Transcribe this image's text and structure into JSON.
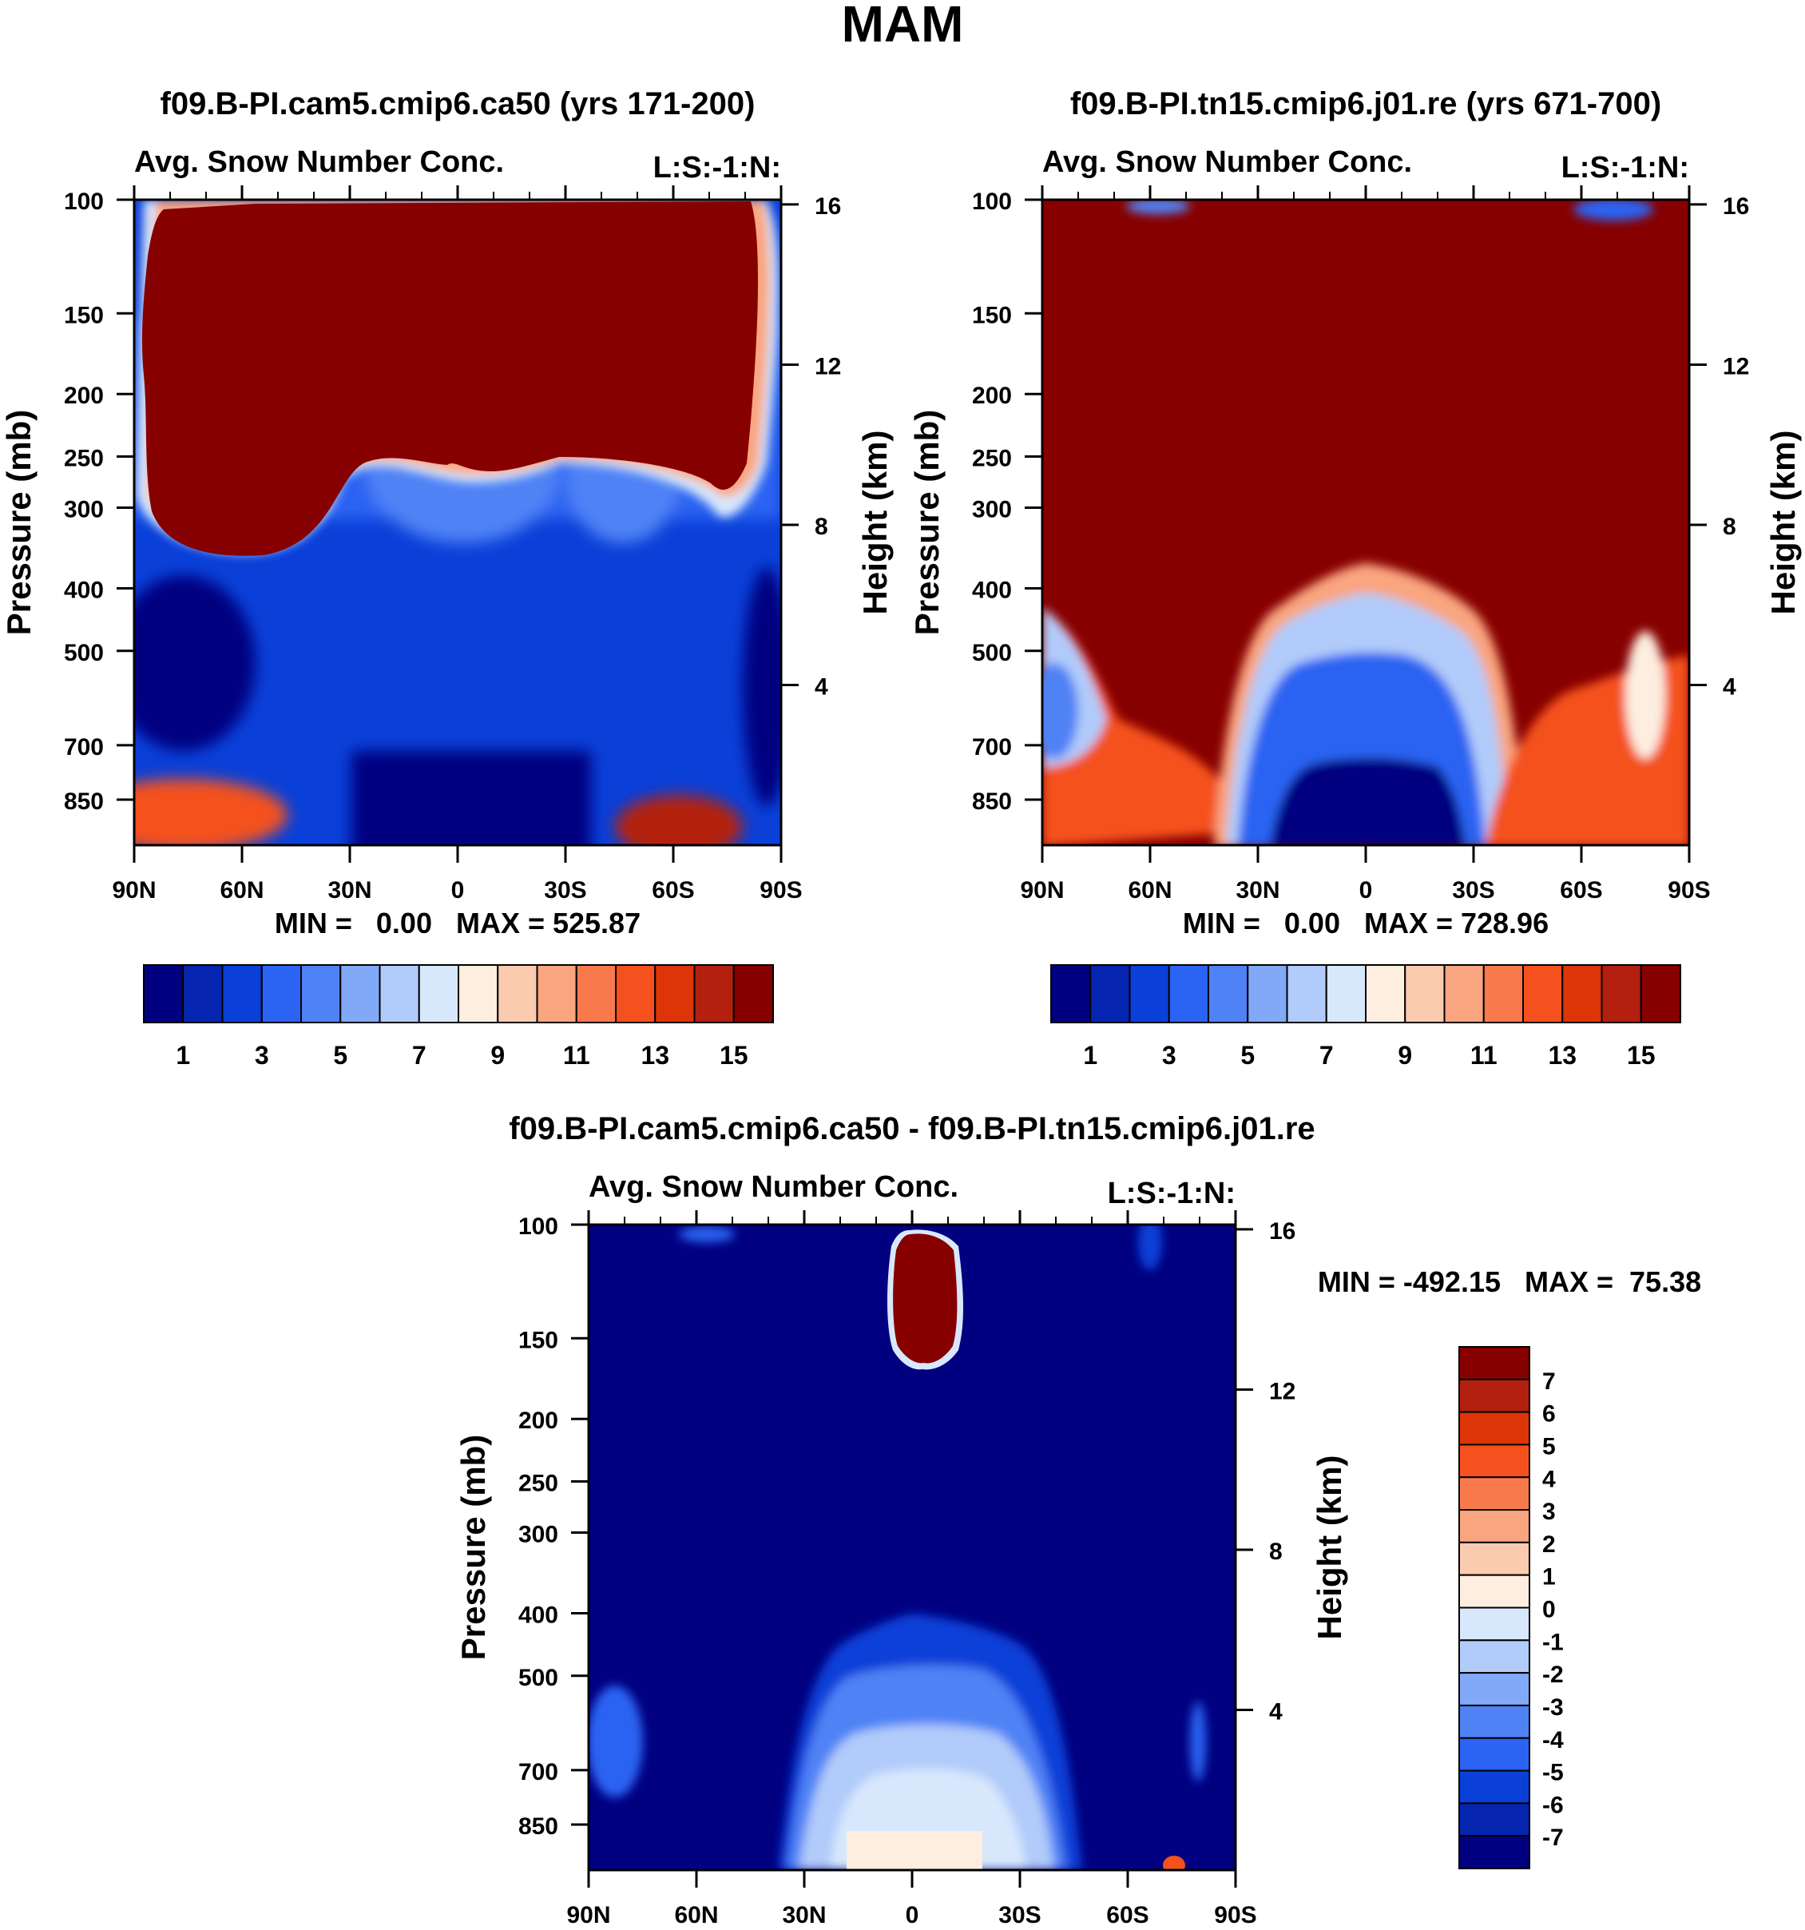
{
  "figure_title": "MAM",
  "palette": {
    "diverging16": [
      "#000080",
      "#0525b0",
      "#0a40d8",
      "#2b63f2",
      "#4f82f5",
      "#82a8f8",
      "#b1cbfa",
      "#d8e8fc",
      "#fdeee0",
      "#fbcbb0",
      "#f9a57f",
      "#f87a4c",
      "#f4511e",
      "#dd3408",
      "#b42010",
      "#870000"
    ],
    "background_low": "#000080",
    "background_high": "#870000"
  },
  "chart_data": [
    {
      "type": "contour",
      "panel": "top-left",
      "title": "f09.B-PI.cam5.cmip6.ca50 (yrs 171-200)",
      "subtitle_left": "Avg. Snow Number Conc.",
      "subtitle_right": "L:S:-1:N:",
      "xlabel": "",
      "ylabel": "Pressure (mb)",
      "y2label": "Height (km)",
      "x_ticks": [
        "90N",
        "60N",
        "30N",
        "0",
        "30S",
        "60S",
        "90S"
      ],
      "y_ticks": [
        100,
        150,
        200,
        250,
        300,
        400,
        500,
        700,
        850
      ],
      "y2_ticks": [
        16,
        12,
        8,
        4
      ],
      "ylim": [
        100,
        1000
      ],
      "stats": "MIN =   0.00   MAX = 525.87",
      "levels": [
        "1",
        "3",
        "5",
        "7",
        "9",
        "11",
        "13",
        "15"
      ],
      "colorbar": "horizontal"
    },
    {
      "type": "contour",
      "panel": "top-right",
      "title": "f09.B-PI.tn15.cmip6.j01.re (yrs 671-700)",
      "subtitle_left": "Avg. Snow Number Conc.",
      "subtitle_right": "L:S:-1:N:",
      "xlabel": "",
      "ylabel": "Pressure (mb)",
      "y2label": "Height (km)",
      "x_ticks": [
        "90N",
        "60N",
        "30N",
        "0",
        "30S",
        "60S",
        "90S"
      ],
      "y_ticks": [
        100,
        150,
        200,
        250,
        300,
        400,
        500,
        700,
        850
      ],
      "y2_ticks": [
        16,
        12,
        8,
        4
      ],
      "ylim": [
        100,
        1000
      ],
      "stats": "MIN =   0.00   MAX = 728.96",
      "levels": [
        "1",
        "3",
        "5",
        "7",
        "9",
        "11",
        "13",
        "15"
      ],
      "colorbar": "horizontal"
    },
    {
      "type": "contour",
      "panel": "bottom",
      "title": "f09.B-PI.cam5.cmip6.ca50 - f09.B-PI.tn15.cmip6.j01.re",
      "subtitle_left": "Avg. Snow Number Conc.",
      "subtitle_right": "L:S:-1:N:",
      "xlabel": "",
      "ylabel": "Pressure (mb)",
      "y2label": "Height (km)",
      "x_ticks": [
        "90N",
        "60N",
        "30N",
        "0",
        "30S",
        "60S",
        "90S"
      ],
      "y_ticks": [
        100,
        150,
        200,
        250,
        300,
        400,
        500,
        700,
        850
      ],
      "y2_ticks": [
        16,
        12,
        8,
        4
      ],
      "ylim": [
        100,
        1000
      ],
      "stats": "MIN = -492.15   MAX =  75.38",
      "levels": [
        "7",
        "6",
        "5",
        "4",
        "3",
        "2",
        "1",
        "0",
        "-1",
        "-2",
        "-3",
        "-4",
        "-5",
        "-6",
        "-7"
      ],
      "colorbar": "vertical"
    }
  ]
}
